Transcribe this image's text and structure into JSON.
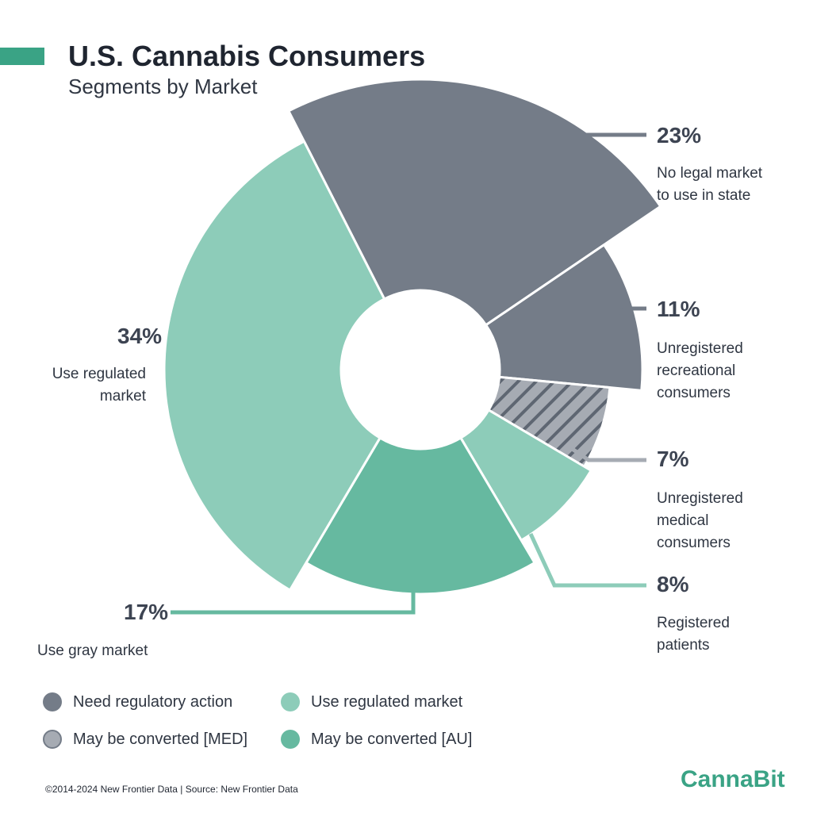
{
  "header": {
    "title": "U.S. Cannabis Consumers",
    "subtitle": "Segments by Market"
  },
  "chart_data": {
    "type": "pie",
    "style": "donut",
    "title": "U.S. Cannabis Consumers",
    "subtitle": "Segments by Market",
    "slices": [
      {
        "label": "No legal market to use in state",
        "value": 23,
        "display": "23%",
        "group": "Need regulatory action",
        "color": "#747c88",
        "hatched": false
      },
      {
        "label": "Unregistered recreational consumers",
        "value": 11,
        "display": "11%",
        "group": "Need regulatory action",
        "color": "#747c88",
        "hatched": false
      },
      {
        "label": "Unregistered medical consumers",
        "value": 7,
        "display": "7%",
        "group": "May be converted [MED]",
        "color": "#a6abb3",
        "hatched": true
      },
      {
        "label": "Registered patients",
        "value": 8,
        "display": "8%",
        "group": "Use regulated market",
        "color": "#8dccb9",
        "hatched": false
      },
      {
        "label": "Use gray market",
        "value": 17,
        "display": "17%",
        "group": "May be converted [AU]",
        "color": "#66b9a0",
        "hatched": false
      },
      {
        "label": "Use regulated market",
        "value": 34,
        "display": "34%",
        "group": "Use regulated market",
        "color": "#8dccb9",
        "hatched": false
      }
    ],
    "labels": {
      "no_legal": {
        "pct": "23%",
        "lines": [
          "No legal market",
          "to use in state"
        ]
      },
      "unreg_rec": {
        "pct": "11%",
        "lines": [
          "Unregistered",
          "recreational",
          "consumers"
        ]
      },
      "unreg_med": {
        "pct": "7%",
        "lines": [
          "Unregistered",
          "medical",
          "consumers"
        ]
      },
      "registered": {
        "pct": "8%",
        "lines": [
          "Registered",
          "patients"
        ]
      },
      "gray": {
        "pct": "17%",
        "lines": [
          "Use gray market"
        ]
      },
      "regulated": {
        "pct": "34%",
        "lines": [
          "Use regulated",
          "market"
        ]
      }
    },
    "legend": [
      {
        "label": "Need regulatory action",
        "color": "#747c88"
      },
      {
        "label": "Use regulated market",
        "color": "#8dccb9"
      },
      {
        "label": "May be converted [MED]",
        "color": "#a6abb3"
      },
      {
        "label": "May be converted [AU]",
        "color": "#66b9a0"
      }
    ]
  },
  "footer": {
    "copyright": "©2014-2024  New Frontier Data | Source: New Frontier Data"
  },
  "brand": {
    "logo_text": "CannaBit",
    "color": "#3aa385"
  }
}
